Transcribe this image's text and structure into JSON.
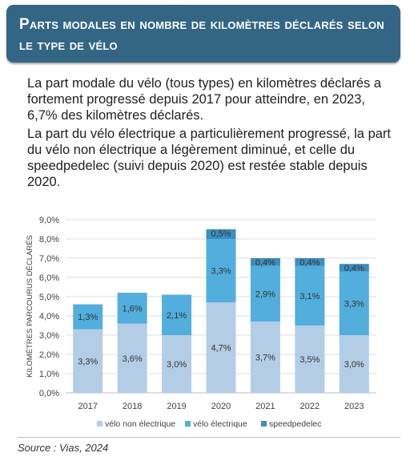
{
  "header": {
    "title": "Parts modales en nombre de kilomètres déclarés selon le type de vélo"
  },
  "paragraphs": [
    "La part modale du vélo (tous types) en kilomètres déclarés a fortement progressé depuis 2017 pour atteindre, en 2023, 6,7% des kilomètres déclarés.",
    "La part du vélo électrique a particulièrement progressé, la part du vélo non électrique a légèrement diminué, et celle du speedpedelec (suivi depuis 2020) est restée stable depuis 2020."
  ],
  "source": "Source : Vias, 2024",
  "colors": {
    "banner": "#336685",
    "non_electrique": "#b4cde6",
    "electrique": "#52aedc",
    "speedpedelec": "#3b8fc0"
  },
  "chart_data": {
    "type": "bar",
    "stacked": true,
    "categories": [
      "2017",
      "2018",
      "2019",
      "2020",
      "2021",
      "2022",
      "2023"
    ],
    "series": [
      {
        "name": "vélo non électrique",
        "values": [
          3.3,
          3.6,
          3.0,
          4.7,
          3.7,
          3.5,
          3.0
        ],
        "labels": [
          "3,3%",
          "3,6%",
          "3,0%",
          "4,7%",
          "3,7%",
          "3,5%",
          "3,0%"
        ]
      },
      {
        "name": "vélo électrique",
        "values": [
          1.3,
          1.6,
          2.1,
          3.3,
          2.9,
          3.1,
          3.3
        ],
        "labels": [
          "1,3%",
          "1,6%",
          "2,1%",
          "3,3%",
          "2,9%",
          "3,1%",
          "3,3%"
        ]
      },
      {
        "name": "speedpedelec",
        "values": [
          null,
          null,
          null,
          0.5,
          0.4,
          0.4,
          0.4
        ],
        "labels": [
          "",
          "",
          "",
          "0,5%",
          "0,4%",
          "0,4%",
          "0,4%"
        ]
      }
    ],
    "ylabel": "KILOMÈTRES PARCOURUS DÉCLARÉS",
    "xlabel": "",
    "ylim": [
      0,
      9
    ],
    "yticks": [
      "0,0%",
      "1,0%",
      "2,0%",
      "3,0%",
      "4,0%",
      "5,0%",
      "6,0%",
      "7,0%",
      "8,0%",
      "9,0%"
    ],
    "grid": true,
    "legend": "bottom"
  }
}
